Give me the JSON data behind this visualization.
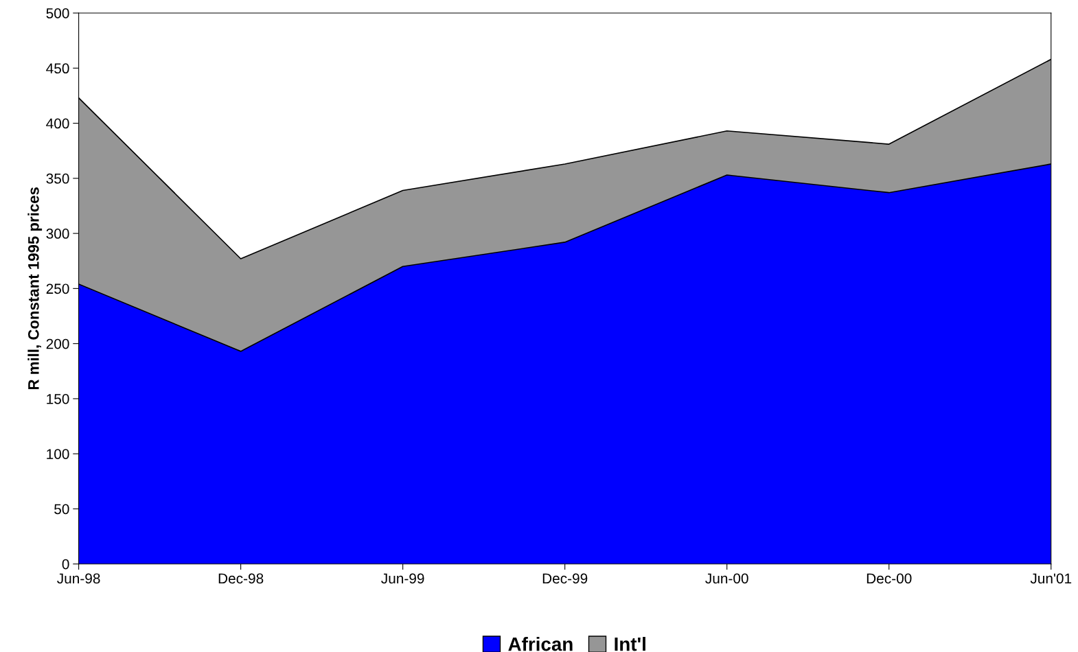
{
  "chart_data": {
    "type": "area",
    "stacked": true,
    "ylabel": "R mill, Constant 1995 prices",
    "categories": [
      "Jun-98",
      "Dec-98",
      "Jun-99",
      "Dec-99",
      "Jun-00",
      "Dec-00",
      "Jun'01"
    ],
    "series": [
      {
        "name": "African",
        "color": "#0000ff",
        "values": [
          254,
          193,
          270,
          292,
          353,
          337,
          363
        ]
      },
      {
        "name": "Int'l",
        "color": "#969696",
        "values": [
          169,
          84,
          69,
          71,
          40,
          44,
          95
        ]
      }
    ],
    "ylim": [
      0,
      500
    ],
    "yticks": [
      0,
      50,
      100,
      150,
      200,
      250,
      300,
      350,
      400,
      450,
      500
    ],
    "grid": false,
    "legend": "bottom"
  }
}
